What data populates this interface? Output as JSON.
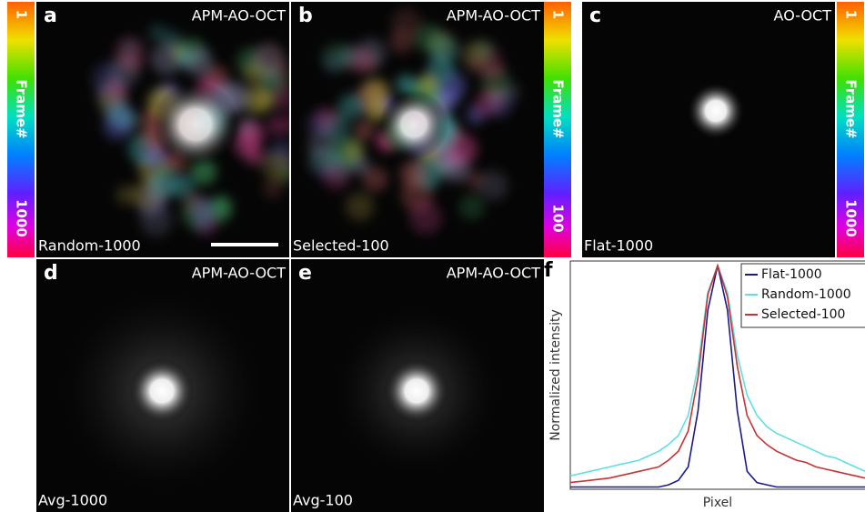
{
  "panels": [
    {
      "letter": "a",
      "tag": "APM-AO-OCT",
      "caption": "Random-1000"
    },
    {
      "letter": "b",
      "tag": "APM-AO-OCT",
      "caption": "Selected-100"
    },
    {
      "letter": "c",
      "tag": "AO-OCT",
      "caption": "Flat-1000"
    },
    {
      "letter": "d",
      "tag": "APM-AO-OCT",
      "caption": "Avg-1000"
    },
    {
      "letter": "e",
      "tag": "APM-AO-OCT",
      "caption": "Avg-100"
    }
  ],
  "colorbars": [
    {
      "top": "1",
      "label": "Frame#",
      "bottom": "1000"
    },
    {
      "top": "1",
      "label": "Frame#",
      "bottom": "100"
    },
    {
      "top": "1",
      "label": "Frame#",
      "bottom": "1000"
    }
  ],
  "chart_data": {
    "type": "line",
    "letter": "f",
    "xlabel": "Pixel",
    "ylabel": "Normalized intensity",
    "x": [
      0,
      2,
      4,
      6,
      8,
      10,
      12,
      14,
      16,
      18,
      20,
      22,
      24,
      26,
      28,
      30,
      32,
      34,
      36,
      38,
      40,
      42,
      44,
      46,
      48,
      50,
      52,
      54,
      56,
      58,
      60
    ],
    "xlim": [
      0,
      60
    ],
    "ylim": [
      0,
      1.02
    ],
    "series": [
      {
        "name": "Flat-1000",
        "color": "#1a1a8c",
        "values": [
          0.01,
          0.01,
          0.01,
          0.01,
          0.01,
          0.01,
          0.01,
          0.01,
          0.01,
          0.01,
          0.02,
          0.04,
          0.1,
          0.35,
          0.8,
          1,
          0.8,
          0.35,
          0.08,
          0.03,
          0.02,
          0.01,
          0.01,
          0.01,
          0.01,
          0.01,
          0.01,
          0.01,
          0.01,
          0.01,
          0.01
        ]
      },
      {
        "name": "Random-1000",
        "color": "#5ee0e0",
        "values": [
          0.06,
          0.07,
          0.08,
          0.09,
          0.1,
          0.11,
          0.12,
          0.13,
          0.15,
          0.17,
          0.2,
          0.24,
          0.33,
          0.55,
          0.88,
          1,
          0.88,
          0.6,
          0.42,
          0.33,
          0.28,
          0.25,
          0.23,
          0.21,
          0.19,
          0.17,
          0.15,
          0.14,
          0.12,
          0.1,
          0.08
        ]
      },
      {
        "name": "Selected-100",
        "color": "#c83232",
        "values": [
          0.03,
          0.035,
          0.04,
          0.045,
          0.05,
          0.06,
          0.07,
          0.08,
          0.09,
          0.1,
          0.13,
          0.17,
          0.26,
          0.5,
          0.87,
          1,
          0.86,
          0.55,
          0.33,
          0.24,
          0.2,
          0.17,
          0.15,
          0.13,
          0.12,
          0.1,
          0.09,
          0.08,
          0.07,
          0.06,
          0.05
        ]
      }
    ]
  }
}
